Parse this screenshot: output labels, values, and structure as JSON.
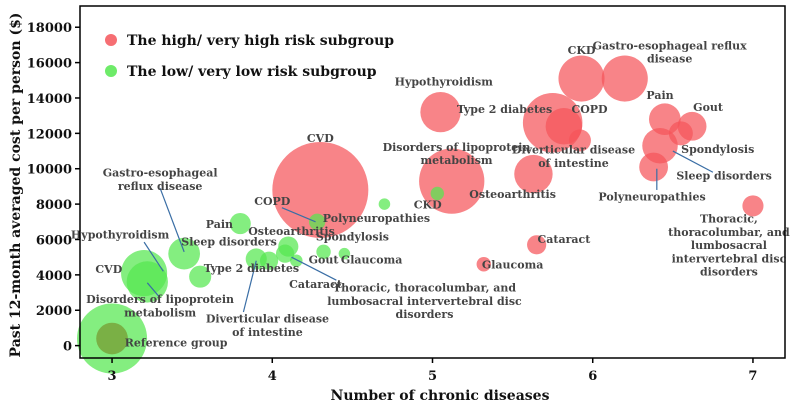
{
  "chart_data": {
    "type": "scatter",
    "subtype": "bubble",
    "xlabel": "Number of chronic diseases",
    "ylabel": "Past 12-month averaged cost per person ($)",
    "xlim": [
      2.8,
      7.2
    ],
    "ylim": [
      -700,
      19200
    ],
    "xticks": [
      3,
      4,
      5,
      6,
      7
    ],
    "yticks": [
      0,
      2000,
      4000,
      6000,
      8000,
      10000,
      12000,
      14000,
      16000,
      18000
    ],
    "legend_position": "top-left",
    "colors": {
      "high": "#f5555a",
      "low": "#55e84f",
      "reference": "#79a83e",
      "leader": "#3a6ea5"
    },
    "series": [
      {
        "name": "The high/ very high risk subgroup",
        "color_key": "high",
        "points": [
          {
            "x": 4.3,
            "y": 8800,
            "size": 1.0
          },
          {
            "x": 5.12,
            "y": 9300,
            "size": 0.68
          },
          {
            "x": 5.05,
            "y": 13200,
            "size": 0.42
          },
          {
            "x": 5.75,
            "y": 12600,
            "size": 0.62
          },
          {
            "x": 5.82,
            "y": 12400,
            "size": 0.38
          },
          {
            "x": 5.93,
            "y": 15100,
            "size": 0.48
          },
          {
            "x": 6.2,
            "y": 15100,
            "size": 0.48
          },
          {
            "x": 5.92,
            "y": 11600,
            "size": 0.23
          },
          {
            "x": 5.63,
            "y": 9700,
            "size": 0.4
          },
          {
            "x": 6.45,
            "y": 12800,
            "size": 0.33
          },
          {
            "x": 6.62,
            "y": 12400,
            "size": 0.3
          },
          {
            "x": 6.55,
            "y": 12000,
            "size": 0.25
          },
          {
            "x": 6.42,
            "y": 11300,
            "size": 0.37
          },
          {
            "x": 6.38,
            "y": 10100,
            "size": 0.3
          },
          {
            "x": 7.0,
            "y": 7900,
            "size": 0.22
          },
          {
            "x": 5.65,
            "y": 5700,
            "size": 0.2
          },
          {
            "x": 5.32,
            "y": 4600,
            "size": 0.15
          }
        ]
      },
      {
        "name": "The low/ very low risk subgroup",
        "color_key": "low",
        "points": [
          {
            "x": 3.0,
            "y": 400,
            "size": 0.73
          },
          {
            "x": 3.2,
            "y": 4100,
            "size": 0.48
          },
          {
            "x": 3.22,
            "y": 3600,
            "size": 0.43
          },
          {
            "x": 3.45,
            "y": 5200,
            "size": 0.33
          },
          {
            "x": 3.55,
            "y": 3900,
            "size": 0.23
          },
          {
            "x": 3.8,
            "y": 6900,
            "size": 0.22
          },
          {
            "x": 3.9,
            "y": 4900,
            "size": 0.22
          },
          {
            "x": 3.98,
            "y": 4800,
            "size": 0.19
          },
          {
            "x": 4.08,
            "y": 5200,
            "size": 0.19
          },
          {
            "x": 4.1,
            "y": 5600,
            "size": 0.21
          },
          {
            "x": 4.28,
            "y": 7000,
            "size": 0.17
          },
          {
            "x": 4.32,
            "y": 5300,
            "size": 0.15
          },
          {
            "x": 4.15,
            "y": 4800,
            "size": 0.13
          },
          {
            "x": 4.45,
            "y": 5200,
            "size": 0.12
          },
          {
            "x": 4.7,
            "y": 8000,
            "size": 0.12
          },
          {
            "x": 5.03,
            "y": 8600,
            "size": 0.14
          }
        ]
      },
      {
        "name": "Reference group",
        "color_key": "reference",
        "points": [
          {
            "x": 3.0,
            "y": 400,
            "size": 0.33
          }
        ]
      }
    ],
    "annotations": [
      {
        "lines": [
          "CVD"
        ],
        "x": 4.3,
        "y": 11500,
        "anchor": "middle"
      },
      {
        "lines": [
          "Disorders of lipoprotein",
          "metabolism"
        ],
        "x": 5.15,
        "y": 11000,
        "anchor": "middle"
      },
      {
        "lines": [
          "Hypothyroidism"
        ],
        "x": 5.07,
        "y": 14700,
        "anchor": "middle"
      },
      {
        "lines": [
          "Type 2 diabetes"
        ],
        "x": 5.45,
        "y": 13150,
        "anchor": "middle"
      },
      {
        "lines": [
          "CKD"
        ],
        "x": 5.93,
        "y": 16500,
        "anchor": "middle"
      },
      {
        "lines": [
          "Gastro-esophageal reflux",
          "disease"
        ],
        "x": 6.48,
        "y": 16750,
        "anchor": "middle"
      },
      {
        "lines": [
          "COPD"
        ],
        "x": 5.98,
        "y": 13150,
        "anchor": "middle"
      },
      {
        "lines": [
          "Pain"
        ],
        "x": 6.42,
        "y": 13950,
        "anchor": "middle"
      },
      {
        "lines": [
          "Gout"
        ],
        "x": 6.72,
        "y": 13250,
        "anchor": "middle"
      },
      {
        "lines": [
          "Diverticular disease",
          "of intestine"
        ],
        "x": 5.88,
        "y": 10850,
        "anchor": "middle"
      },
      {
        "lines": [
          "Spondylosis"
        ],
        "x": 6.78,
        "y": 10900,
        "anchor": "middle"
      },
      {
        "lines": [
          "Sleep disorders"
        ],
        "x": 6.82,
        "y": 9400,
        "anchor": "middle"
      },
      {
        "lines": [
          "Osteoarthritis"
        ],
        "x": 5.5,
        "y": 8350,
        "anchor": "middle"
      },
      {
        "lines": [
          "Polyneuropathies"
        ],
        "x": 6.37,
        "y": 8200,
        "anchor": "middle"
      },
      {
        "lines": [
          "CKD"
        ],
        "x": 4.97,
        "y": 7750,
        "anchor": "middle"
      },
      {
        "lines": [
          "Polyneuropathies"
        ],
        "x": 4.65,
        "y": 7000,
        "anchor": "middle"
      },
      {
        "lines": [
          "Thoracic,",
          "thoracolumbar, and",
          "lumbosacral",
          "intervertebral disc",
          "disorders"
        ],
        "x": 6.85,
        "y": 6950,
        "anchor": "middle"
      },
      {
        "lines": [
          "Cataract"
        ],
        "x": 5.82,
        "y": 5800,
        "anchor": "middle"
      },
      {
        "lines": [
          "Glaucoma"
        ],
        "x": 5.5,
        "y": 4350,
        "anchor": "middle"
      },
      {
        "lines": [
          "Gastro-esophageal",
          "reflux disease"
        ],
        "x": 3.3,
        "y": 9550,
        "anchor": "middle"
      },
      {
        "lines": [
          "COPD"
        ],
        "x": 4.0,
        "y": 7950,
        "anchor": "middle"
      },
      {
        "lines": [
          "Pain"
        ],
        "x": 3.67,
        "y": 6650,
        "anchor": "middle"
      },
      {
        "lines": [
          "Osteoarthritis"
        ],
        "x": 4.12,
        "y": 6250,
        "anchor": "middle"
      },
      {
        "lines": [
          "Sleep disorders"
        ],
        "x": 3.73,
        "y": 5650,
        "anchor": "middle"
      },
      {
        "lines": [
          "Spondylosis"
        ],
        "x": 4.5,
        "y": 5950,
        "anchor": "middle"
      },
      {
        "lines": [
          "Hypothyroidism"
        ],
        "x": 3.05,
        "y": 6050,
        "anchor": "middle"
      },
      {
        "lines": [
          "CVD"
        ],
        "x": 2.98,
        "y": 4100,
        "anchor": "middle"
      },
      {
        "lines": [
          "Type 2 diabetes"
        ],
        "x": 3.87,
        "y": 4150,
        "anchor": "middle"
      },
      {
        "lines": [
          "Gout"
        ],
        "x": 4.32,
        "y": 4650,
        "anchor": "middle"
      },
      {
        "lines": [
          "Glaucoma"
        ],
        "x": 4.62,
        "y": 4650,
        "anchor": "middle"
      },
      {
        "lines": [
          "Cataract"
        ],
        "x": 4.27,
        "y": 3250,
        "anchor": "middle"
      },
      {
        "lines": [
          "Thoracic, thoracolumbar, and",
          "lumbosacral intervertebral disc",
          "disorders"
        ],
        "x": 4.95,
        "y": 3050,
        "anchor": "middle"
      },
      {
        "lines": [
          "Disorders of lipoprotein",
          "metabolism"
        ],
        "x": 3.3,
        "y": 2400,
        "anchor": "middle"
      },
      {
        "lines": [
          "Diverticular disease",
          "of intestine"
        ],
        "x": 3.97,
        "y": 1300,
        "anchor": "middle"
      },
      {
        "lines": [
          "Reference group"
        ],
        "x": 3.4,
        "y": -50,
        "anchor": "middle"
      }
    ],
    "leader_lines": [
      {
        "x1": 3.3,
        "y1": 8900,
        "x2": 3.45,
        "y2": 5300
      },
      {
        "x1": 4.06,
        "y1": 7800,
        "x2": 4.27,
        "y2": 7000
      },
      {
        "x1": 3.2,
        "y1": 5850,
        "x2": 3.32,
        "y2": 4200
      },
      {
        "x1": 3.3,
        "y1": 2700,
        "x2": 3.22,
        "y2": 3550
      },
      {
        "x1": 3.82,
        "y1": 1900,
        "x2": 3.9,
        "y2": 4800
      },
      {
        "x1": 4.4,
        "y1": 3700,
        "x2": 4.12,
        "y2": 5000
      },
      {
        "x1": 6.4,
        "y1": 8800,
        "x2": 6.4,
        "y2": 10000
      },
      {
        "x1": 6.75,
        "y1": 9800,
        "x2": 6.5,
        "y2": 11000
      }
    ]
  }
}
